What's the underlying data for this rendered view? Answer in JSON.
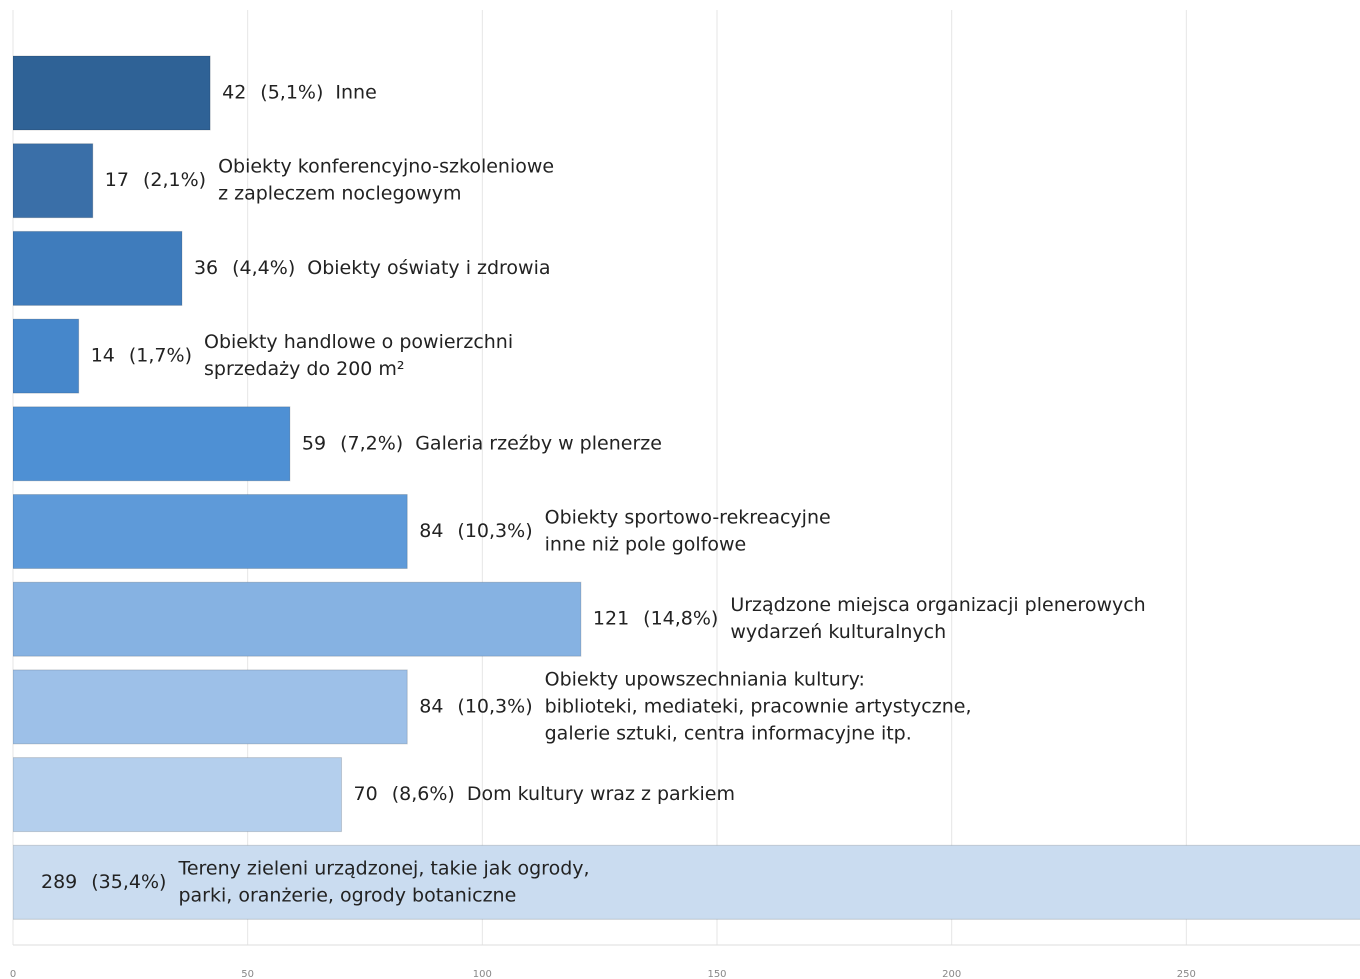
{
  "chart_data": {
    "type": "bar",
    "orientation": "horizontal",
    "categories": [
      [
        "Inne"
      ],
      [
        "Obiekty konferencyjno-szkoleniowe",
        "z zapleczem noclegowym"
      ],
      [
        "Obiekty oświaty i zdrowia"
      ],
      [
        "Obiekty handlowe o powierzchni",
        "sprzedaży do 200 m²"
      ],
      [
        "Galeria rzeźby w plenerze"
      ],
      [
        "Obiekty sportowo-rekreacyjne",
        "inne niż pole golfowe"
      ],
      [
        "Urządzone miejsca organizacji plenerowych",
        "wydarzeń kulturalnych"
      ],
      [
        "Obiekty upowszechniania kultury:",
        "biblioteki, mediateki, pracownie artystyczne,",
        "galerie sztuki, centra informacyjne itp."
      ],
      [
        "Dom kultury wraz z parkiem"
      ],
      [
        "Tereny zieleni urządzonej, takie jak ogrody,",
        "parki, oranżerie, ogrody botaniczne"
      ]
    ],
    "values": [
      42,
      17,
      36,
      14,
      59,
      84,
      121,
      84,
      70,
      289
    ],
    "shares": [
      "(5,1%)",
      "(2,1%)",
      "(4,4%)",
      "(1,7%)",
      "(7,2%)",
      "(10,3%)",
      "(14,8%)",
      "(10,3%)",
      "(8,6%)",
      "(35,4%)"
    ],
    "colors": [
      "#2f6296",
      "#3a6fa8",
      "#3f7cbc",
      "#4687cb",
      "#4e90d4",
      "#5e9ad9",
      "#86b2e2",
      "#9dc0e8",
      "#b4cfed",
      "#cadcf0"
    ],
    "xlim": [
      0,
      287
    ],
    "xticks": [
      0,
      50,
      100,
      150,
      200,
      250
    ],
    "grid": true
  }
}
